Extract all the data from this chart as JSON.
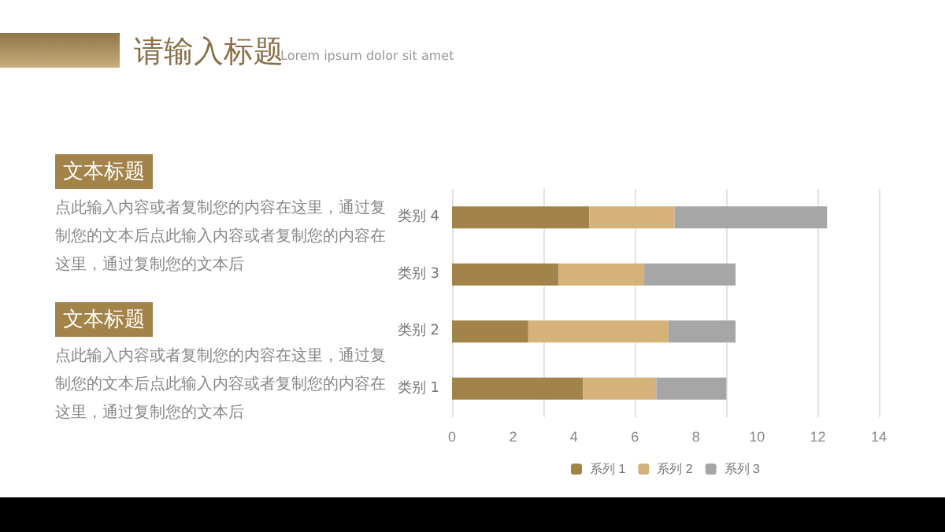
{
  "chart_data": {
    "type": "bar",
    "title": "请输入标题",
    "subtitle": "Lorem ipsum dolor sit amet",
    "annotations": [
      "文本标题",
      "点此输入内容或者复制您的内容在这里，通过复制您的文本后点此输入内容或者复制您的内容在这里，通过复制您的文本后",
      "文本标题",
      "点此输入内容或者复制您的内容在这里，通过复制您的文本后点此输入内容或者复制您的内容在这里，通过复制您的文本后"
    ],
    "orientation": "horizontal",
    "stacked": true,
    "categories": [
      "类别 4",
      "类别 3",
      "类别 2",
      "类别 1"
    ],
    "series": [
      {
        "name": "系列 1",
        "color": "#a2834a",
        "values": [
          4.5,
          3.5,
          2.5,
          4.3
        ]
      },
      {
        "name": "系列 2",
        "color": "#d4b27a",
        "values": [
          2.8,
          2.8,
          4.6,
          2.4
        ]
      },
      {
        "name": "系列 3",
        "color": "#a6a6a6",
        "values": [
          5.0,
          3.0,
          2.2,
          2.3
        ]
      }
    ],
    "xlim": [
      0,
      14
    ],
    "xticks": [
      0,
      2,
      4,
      6,
      8,
      10,
      12,
      14
    ],
    "grid": "x",
    "legend": "bottom"
  }
}
